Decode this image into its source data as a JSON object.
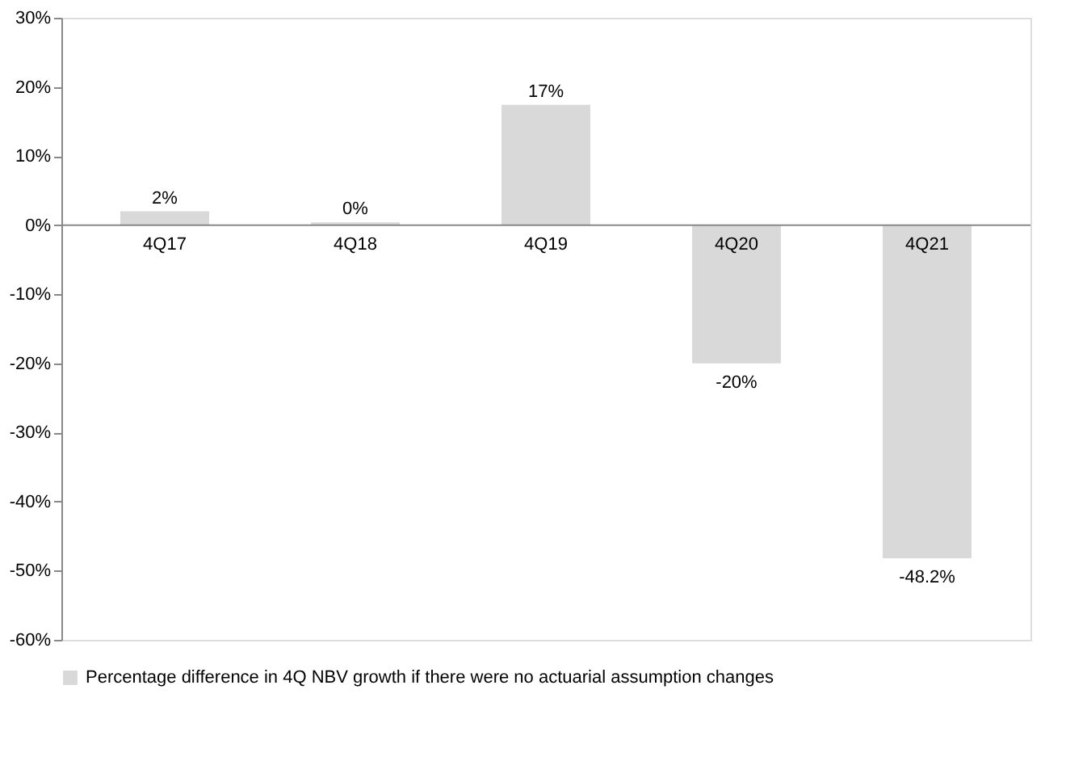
{
  "chart_data": {
    "type": "bar",
    "categories": [
      "4Q17",
      "4Q18",
      "4Q19",
      "4Q20",
      "4Q21"
    ],
    "series": [
      {
        "name": "Percentage difference in 4Q NBV growth if there were no actuarial assumption changes",
        "color": "#d9d9d9",
        "values": [
          2,
          0.4,
          17.4,
          -20,
          -48.2
        ],
        "value_labels": [
          "2%",
          "0%",
          "17%",
          "-20%",
          "-48.2%"
        ]
      }
    ],
    "ylim": [
      -60,
      30
    ],
    "yticks": [
      {
        "value": -60,
        "label": "-60%"
      },
      {
        "value": -50,
        "label": "-50%"
      },
      {
        "value": -40,
        "label": "-40%"
      },
      {
        "value": -30,
        "label": "-30%"
      },
      {
        "value": -20,
        "label": "-20%"
      },
      {
        "value": -10,
        "label": "-10%"
      },
      {
        "value": 0,
        "label": "0%"
      },
      {
        "value": 10,
        "label": "10%"
      },
      {
        "value": 20,
        "label": "20%"
      },
      {
        "value": 30,
        "label": "30%"
      }
    ],
    "grid": false,
    "legend": "bottom"
  }
}
